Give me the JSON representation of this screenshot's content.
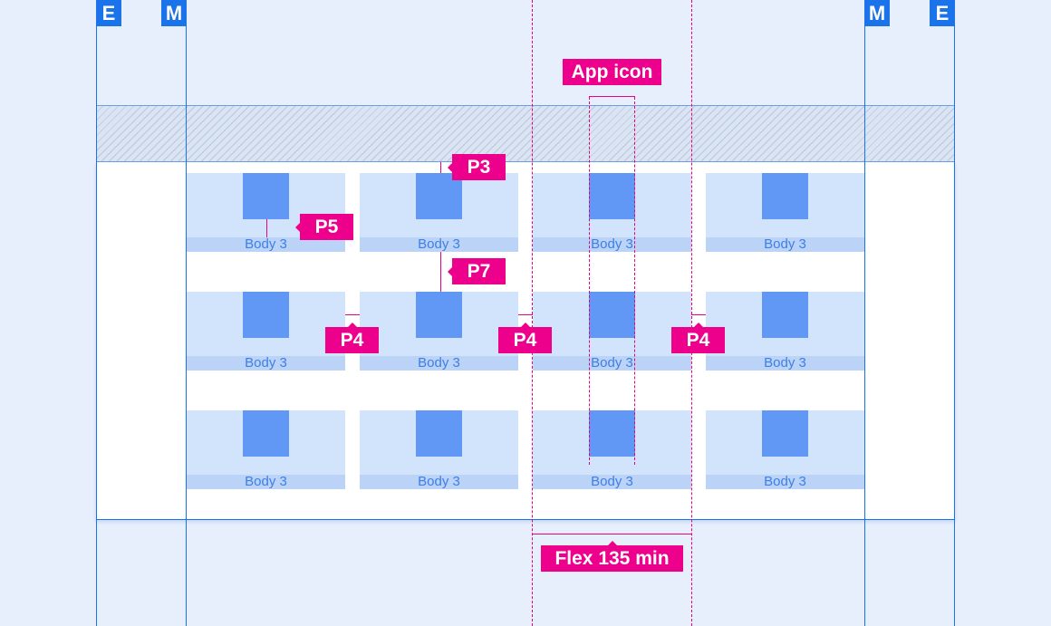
{
  "margins": {
    "edge_label": "E",
    "margin_label": "M"
  },
  "grid": {
    "rows": 3,
    "columns": 4,
    "tile_caption": "Body 3"
  },
  "annotations": {
    "app_icon": "App icon",
    "p3": "P3",
    "p5": "P5",
    "p7": "P7",
    "p4": "P4",
    "flex": "Flex 135 min"
  },
  "colors": {
    "accent": "#1a73e8",
    "annotation": "#ec008c",
    "tile": "#d2e3fc",
    "icon": "#6198f5"
  }
}
